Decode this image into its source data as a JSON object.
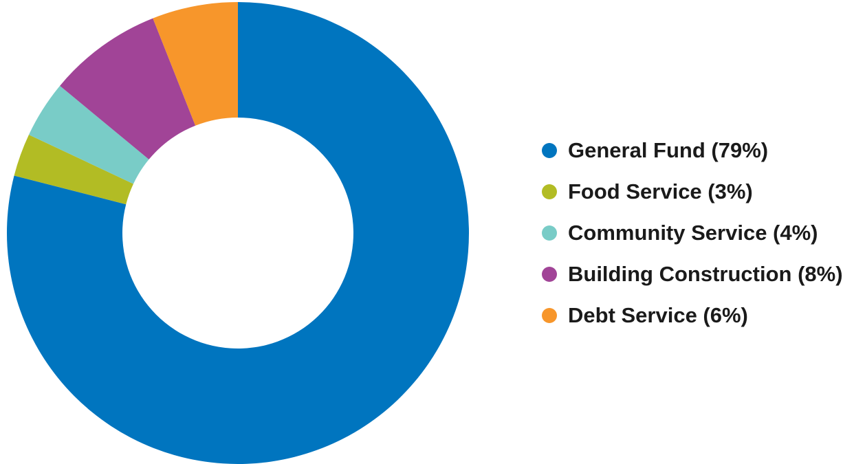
{
  "chart_data": {
    "type": "pie",
    "donut": true,
    "start_angle": "top",
    "direction": "clockwise",
    "legend_position": "right",
    "series": [
      {
        "name": "General Fund (79%)",
        "value": 79,
        "color": "#0075bf"
      },
      {
        "name": "Food Service (3%)",
        "value": 3,
        "color": "#b2bc24"
      },
      {
        "name": "Community Service (4%)",
        "value": 4,
        "color": "#79ccc7"
      },
      {
        "name": "Building Construction (8%)",
        "value": 8,
        "color": "#a14497"
      },
      {
        "name": "Debt Service (6%)",
        "value": 6,
        "color": "#f7962b"
      }
    ]
  }
}
